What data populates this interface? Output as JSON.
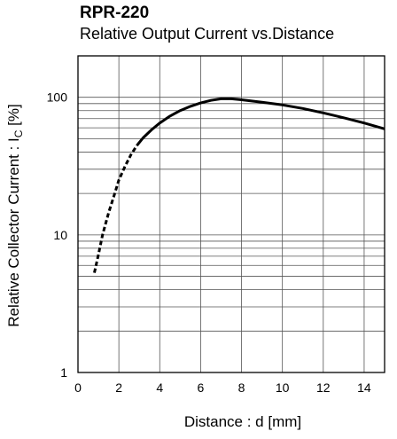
{
  "chart_data": {
    "type": "line",
    "title": "RPR-220",
    "subtitle": "Relative Output Current vs.Distance",
    "xlabel": "Distance : d [mm]",
    "ylabel_main": "Relative Collector Current : I",
    "ylabel_sub": "C",
    "ylabel_unit": " [%]",
    "xlim": [
      0,
      15
    ],
    "ylim": [
      1,
      200
    ],
    "yscale": "log",
    "grid": true,
    "x_ticks": [
      "0",
      "2",
      "4",
      "6",
      "8",
      "10",
      "12",
      "14"
    ],
    "y_ticks": [
      "1",
      "10",
      "100"
    ],
    "series": [
      {
        "line_style": "dashed",
        "x": [
          0.8,
          1.0,
          1.2,
          1.5,
          1.8,
          2.0,
          2.3,
          2.6,
          2.9
        ],
        "y": [
          5.3,
          7.2,
          10.0,
          14.5,
          20.0,
          25.0,
          31.5,
          38.5,
          45.0
        ]
      },
      {
        "line_style": "solid",
        "x": [
          2.9,
          3.2,
          3.6,
          4.0,
          4.5,
          5.0,
          5.5,
          6.0,
          6.5,
          7.0,
          7.5,
          8.0,
          9.0,
          10.0,
          11.0,
          12.0,
          13.0,
          14.0,
          15.0
        ],
        "y": [
          45.0,
          51.0,
          58.0,
          65.0,
          73.0,
          80.0,
          86.0,
          91.0,
          95.0,
          97.5,
          97.5,
          96.0,
          92.0,
          88.0,
          83.0,
          77.0,
          71.0,
          65.0,
          59.0
        ]
      }
    ]
  }
}
